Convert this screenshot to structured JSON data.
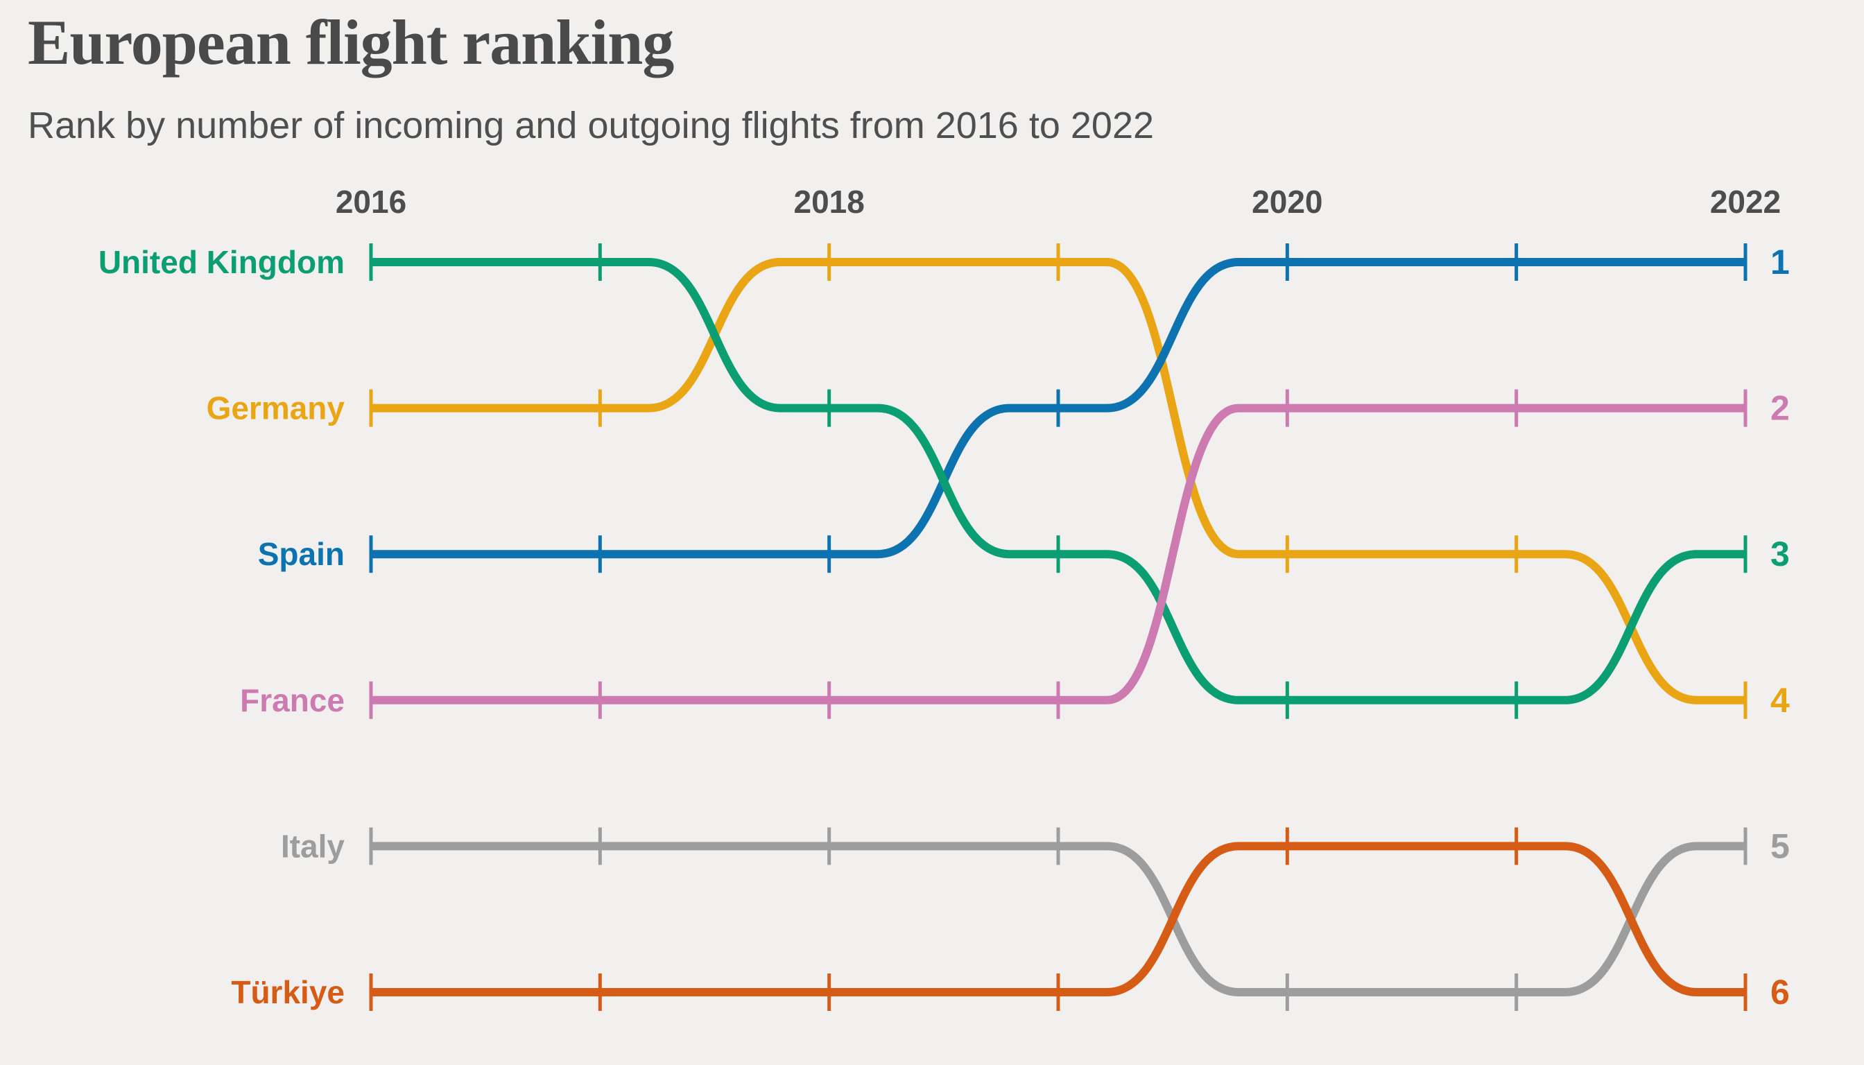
{
  "background_color": "#F1F0EE",
  "text_color": "#4D4D4D",
  "header": {
    "title": "European flight ranking",
    "subtitle": "Rank by number of incoming and outgoing flights from 2016 to 2022"
  },
  "chart_data": {
    "type": "line",
    "subtype": "bump-rank-chart",
    "x": [
      2016,
      2017,
      2018,
      2019,
      2020,
      2021,
      2022
    ],
    "x_axis_labeled_ticks": [
      "2016",
      "2018",
      "2020",
      "2022"
    ],
    "y_meaning": "rank by number of flights (1 = most)",
    "ylim": [
      1,
      6
    ],
    "grid": false,
    "legend": "direct labels: country names at left start, rank numbers at right end",
    "series": [
      {
        "name": "United Kingdom",
        "color": "#0C9E73",
        "ranks": [
          1,
          1,
          2,
          3,
          4,
          4,
          3
        ]
      },
      {
        "name": "Germany",
        "color": "#E9A513",
        "ranks": [
          2,
          2,
          1,
          1,
          3,
          3,
          4
        ]
      },
      {
        "name": "Spain",
        "color": "#0D73B0",
        "ranks": [
          3,
          3,
          3,
          2,
          1,
          1,
          1
        ]
      },
      {
        "name": "France",
        "color": "#CD7AB0",
        "ranks": [
          4,
          4,
          4,
          4,
          2,
          2,
          2
        ]
      },
      {
        "name": "Italy",
        "color": "#9D9D9D",
        "ranks": [
          5,
          5,
          5,
          5,
          6,
          6,
          5
        ]
      },
      {
        "name": "Türkiye",
        "color": "#D65C16",
        "ranks": [
          6,
          6,
          6,
          6,
          5,
          5,
          6
        ]
      }
    ],
    "right_rank_labels": [
      "1",
      "2",
      "3",
      "4",
      "5",
      "6"
    ],
    "draw_order": [
      "Germany",
      "Italy",
      "Spain",
      "United Kingdom",
      "France",
      "Türkiye"
    ]
  }
}
